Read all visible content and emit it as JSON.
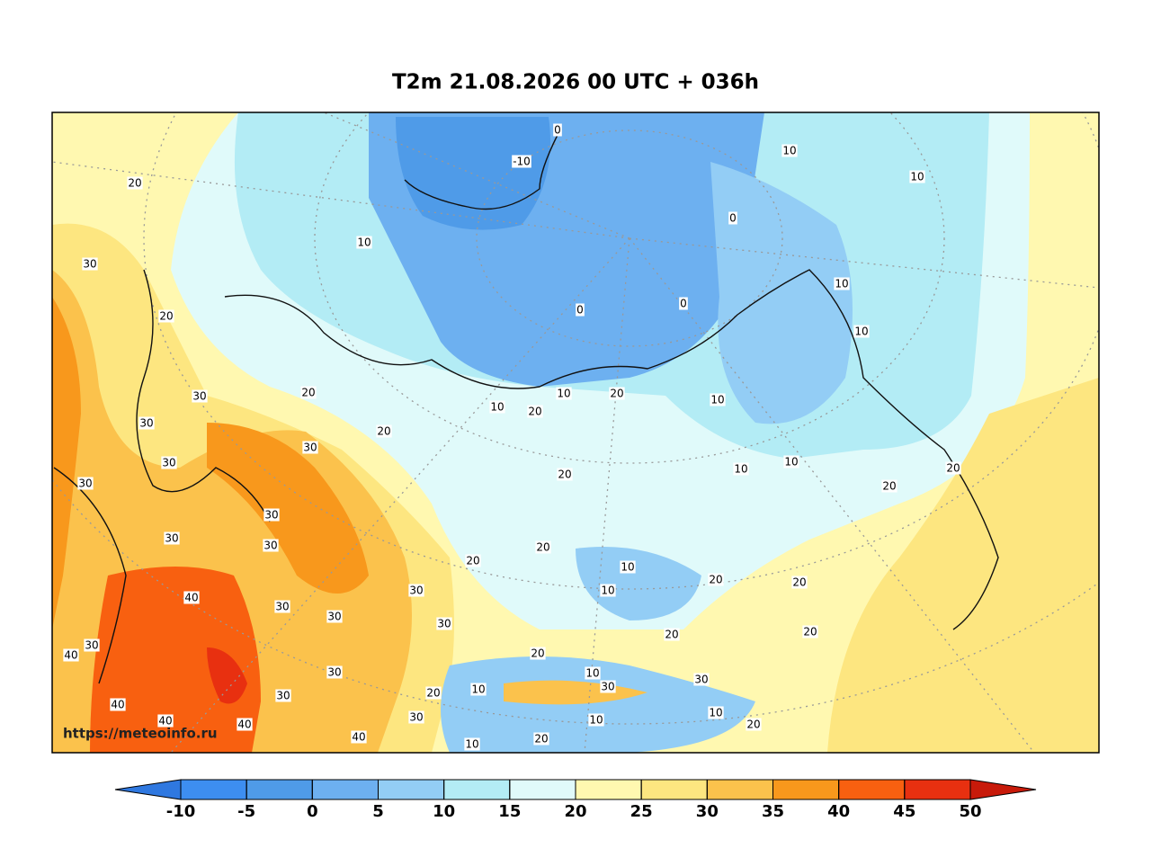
{
  "title": "T2m 21.08.2026 00 UTC + 036h",
  "watermark": "https://meteoinfo.ru",
  "colorbar": {
    "ticks": [
      -10,
      -5,
      0,
      5,
      10,
      15,
      20,
      25,
      30,
      35,
      40,
      45,
      50
    ],
    "colors": [
      "#2f78e0",
      "#3d8ef0",
      "#4f9be8",
      "#6db0f0",
      "#93cdf5",
      "#b3ecf5",
      "#e0fafa",
      "#fff8b0",
      "#fde680",
      "#fbc24c",
      "#f8981c",
      "#f86010",
      "#e83010",
      "#c81a0a"
    ]
  },
  "contour_labels": [
    20,
    -10,
    0,
    10,
    10,
    0,
    30,
    10,
    20,
    0,
    0,
    10,
    10,
    30,
    20,
    10,
    20,
    10,
    20,
    10,
    30,
    20,
    30,
    30,
    10,
    10,
    20,
    30,
    20,
    20,
    30,
    30,
    30,
    20,
    20,
    10,
    20,
    40,
    10,
    30,
    20,
    30,
    30,
    30,
    20,
    40,
    30,
    20,
    20,
    30,
    10,
    30,
    30,
    30,
    20,
    10,
    40,
    40,
    40,
    30,
    10,
    10,
    20,
    40,
    20,
    10
  ]
}
